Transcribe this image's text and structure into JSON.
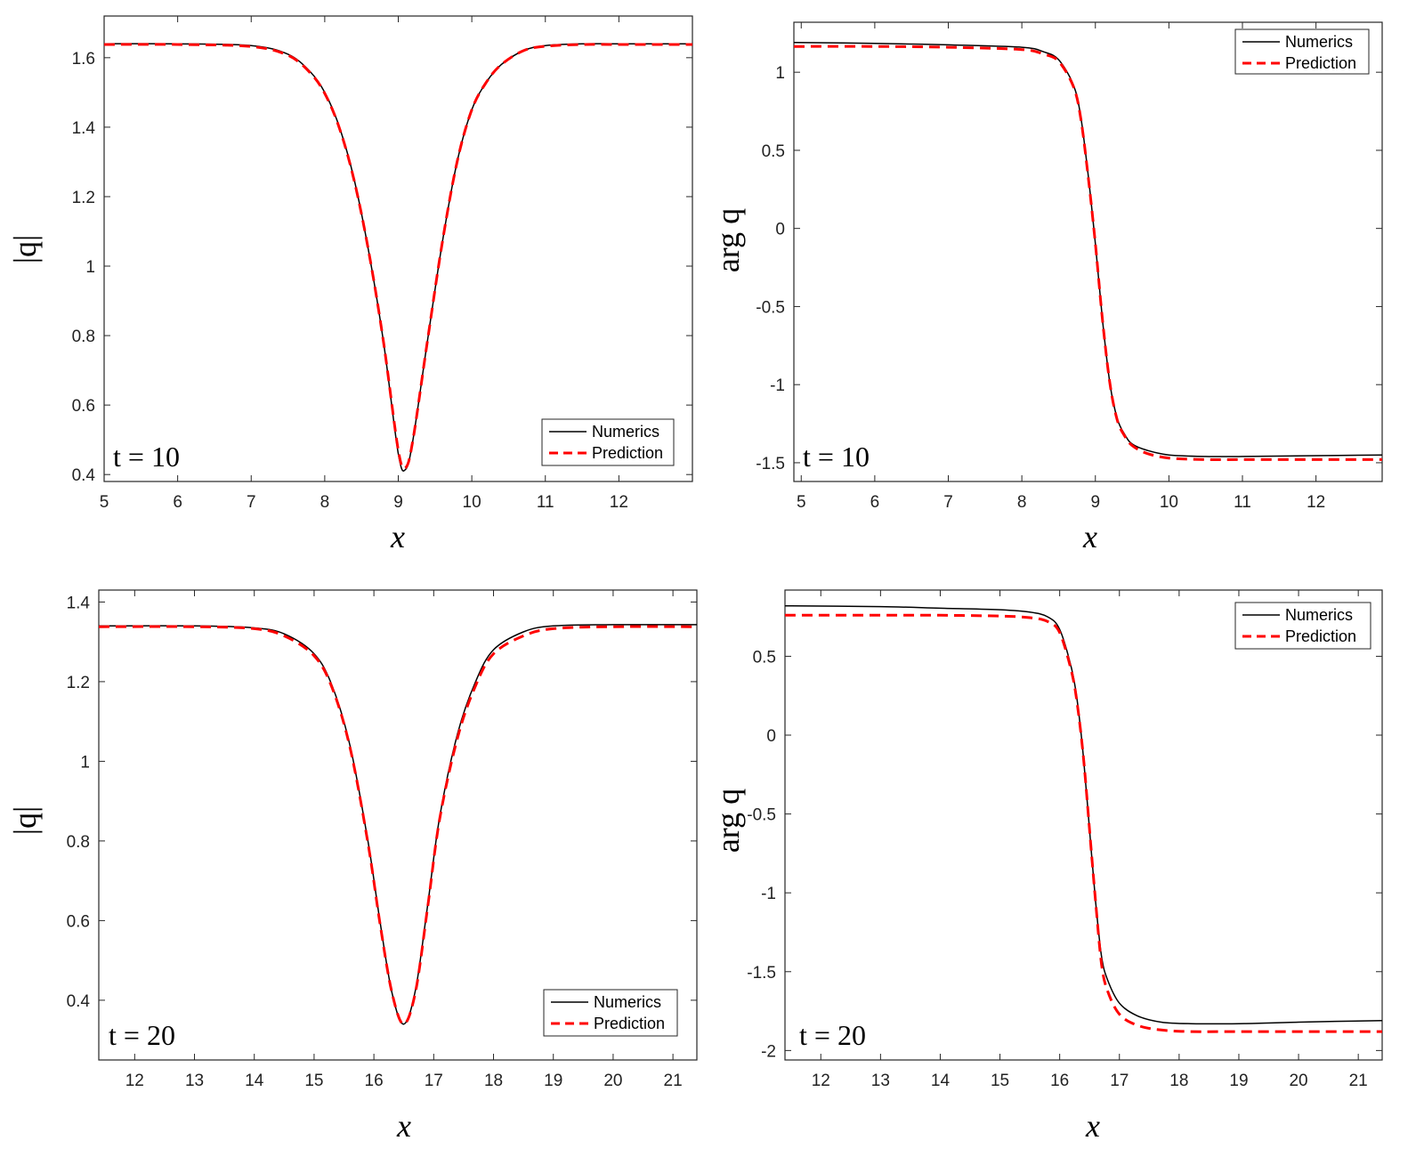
{
  "colors": {
    "numerics": "#000000",
    "prediction": "#ff0000",
    "axes": "#262626"
  },
  "chart_data": [
    {
      "type": "line",
      "xlabel": "x",
      "ylabel": "|q|",
      "annotation": "t = 10",
      "xlim": [
        5,
        13
      ],
      "ylim": [
        0.38,
        1.72
      ],
      "xticks": [
        "5",
        "6",
        "7",
        "8",
        "9",
        "10",
        "11",
        "12"
      ],
      "yticks": [
        "0.4",
        "0.6",
        "0.8",
        "1",
        "1.2",
        "1.4",
        "1.6"
      ],
      "legend_position": "bottom-right",
      "series": [
        {
          "name": "Numerics",
          "style": "solid",
          "x": [
            5,
            6,
            7,
            7.5,
            7.8,
            8,
            8.2,
            8.4,
            8.6,
            8.8,
            9,
            9.1,
            9.2,
            9.4,
            9.6,
            9.8,
            10,
            10.2,
            10.4,
            10.7,
            11,
            11.5,
            12,
            13
          ],
          "y": [
            1.64,
            1.64,
            1.635,
            1.61,
            1.56,
            1.5,
            1.4,
            1.25,
            1.04,
            0.78,
            0.46,
            0.415,
            0.5,
            0.79,
            1.07,
            1.3,
            1.45,
            1.53,
            1.58,
            1.62,
            1.635,
            1.64,
            1.64,
            1.64
          ]
        },
        {
          "name": "Prediction",
          "style": "dashed",
          "x": [
            5,
            6,
            7,
            7.5,
            7.8,
            8,
            8.2,
            8.4,
            8.6,
            8.8,
            9,
            9.1,
            9.2,
            9.4,
            9.6,
            9.8,
            10,
            10.2,
            10.4,
            10.7,
            11,
            11.5,
            12,
            13
          ],
          "y": [
            1.638,
            1.638,
            1.632,
            1.607,
            1.557,
            1.497,
            1.397,
            1.247,
            1.04,
            0.78,
            0.47,
            0.42,
            0.5,
            0.79,
            1.07,
            1.3,
            1.45,
            1.53,
            1.58,
            1.62,
            1.633,
            1.638,
            1.638,
            1.638
          ]
        }
      ]
    },
    {
      "type": "line",
      "xlabel": "x",
      "ylabel": "arg q",
      "annotation": "t = 10",
      "xlim": [
        4.9,
        12.9
      ],
      "ylim": [
        -1.62,
        1.32
      ],
      "xticks": [
        "5",
        "6",
        "7",
        "8",
        "9",
        "10",
        "11",
        "12"
      ],
      "yticks": [
        "-1.5",
        "-1",
        "-0.5",
        "0",
        "0.5",
        "1"
      ],
      "legend_position": "top-right",
      "series": [
        {
          "name": "Numerics",
          "style": "solid",
          "x": [
            4.9,
            6,
            7,
            8,
            8.3,
            8.5,
            8.7,
            8.8,
            8.9,
            9,
            9.1,
            9.2,
            9.3,
            9.4,
            9.5,
            9.7,
            10,
            10.5,
            11,
            12,
            12.9
          ],
          "y": [
            1.19,
            1.185,
            1.175,
            1.16,
            1.13,
            1.08,
            0.92,
            0.72,
            0.35,
            -0.1,
            -0.6,
            -1.0,
            -1.22,
            -1.32,
            -1.38,
            -1.42,
            -1.45,
            -1.46,
            -1.46,
            -1.455,
            -1.45
          ]
        },
        {
          "name": "Prediction",
          "style": "dashed",
          "x": [
            4.9,
            6,
            7,
            8,
            8.3,
            8.5,
            8.7,
            8.8,
            8.9,
            9,
            9.1,
            9.2,
            9.3,
            9.4,
            9.5,
            9.7,
            10,
            10.5,
            11,
            12,
            12.9
          ],
          "y": [
            1.165,
            1.165,
            1.16,
            1.145,
            1.115,
            1.07,
            0.91,
            0.71,
            0.34,
            -0.1,
            -0.6,
            -1.0,
            -1.23,
            -1.33,
            -1.39,
            -1.44,
            -1.47,
            -1.48,
            -1.48,
            -1.48,
            -1.48
          ]
        }
      ]
    },
    {
      "type": "line",
      "xlabel": "x",
      "ylabel": "|q|",
      "annotation": "t = 20",
      "xlim": [
        11.4,
        21.4
      ],
      "ylim": [
        0.25,
        1.43
      ],
      "xticks": [
        "12",
        "13",
        "14",
        "15",
        "16",
        "17",
        "18",
        "19",
        "20",
        "21"
      ],
      "yticks": [
        "0.4",
        "0.6",
        "0.8",
        "1",
        "1.2",
        "1.4"
      ],
      "legend_position": "bottom-right",
      "series": [
        {
          "name": "Numerics",
          "style": "solid",
          "x": [
            11.4,
            13,
            14,
            14.5,
            15,
            15.3,
            15.6,
            15.9,
            16.1,
            16.3,
            16.5,
            16.7,
            16.9,
            17.1,
            17.4,
            17.7,
            18,
            18.5,
            19,
            20,
            21.4
          ],
          "y": [
            1.34,
            1.34,
            1.335,
            1.32,
            1.27,
            1.19,
            1.04,
            0.8,
            0.6,
            0.42,
            0.34,
            0.43,
            0.64,
            0.86,
            1.07,
            1.2,
            1.28,
            1.325,
            1.34,
            1.343,
            1.343
          ]
        },
        {
          "name": "Prediction",
          "style": "dashed",
          "x": [
            11.4,
            13,
            14,
            14.5,
            15,
            15.3,
            15.6,
            15.9,
            16.1,
            16.3,
            16.5,
            16.7,
            16.9,
            17.1,
            17.4,
            17.7,
            18,
            18.5,
            19,
            20,
            21.4
          ],
          "y": [
            1.338,
            1.338,
            1.333,
            1.315,
            1.265,
            1.185,
            1.035,
            0.795,
            0.595,
            0.42,
            0.34,
            0.425,
            0.635,
            0.855,
            1.06,
            1.19,
            1.27,
            1.315,
            1.333,
            1.338,
            1.338
          ]
        }
      ]
    },
    {
      "type": "line",
      "xlabel": "x",
      "ylabel": "arg q",
      "annotation": "t = 20",
      "xlim": [
        11.4,
        21.4
      ],
      "ylim": [
        -2.06,
        0.92
      ],
      "xticks": [
        "12",
        "13",
        "14",
        "15",
        "16",
        "17",
        "18",
        "19",
        "20",
        "21"
      ],
      "yticks": [
        "-2",
        "-1.5",
        "-1",
        "-0.5",
        "0",
        "0.5"
      ],
      "legend_position": "top-right",
      "series": [
        {
          "name": "Numerics",
          "style": "solid",
          "x": [
            11.4,
            13,
            14,
            15,
            15.5,
            15.8,
            16,
            16.2,
            16.3,
            16.4,
            16.5,
            16.6,
            16.7,
            16.8,
            17,
            17.3,
            17.7,
            18.2,
            19,
            20,
            21.4
          ],
          "y": [
            0.82,
            0.815,
            0.805,
            0.795,
            0.78,
            0.75,
            0.67,
            0.42,
            0.2,
            -0.15,
            -0.6,
            -1.05,
            -1.4,
            -1.55,
            -1.7,
            -1.78,
            -1.82,
            -1.83,
            -1.83,
            -1.82,
            -1.81
          ]
        },
        {
          "name": "Prediction",
          "style": "dashed",
          "x": [
            11.4,
            13,
            14,
            15,
            15.5,
            15.8,
            16,
            16.2,
            16.3,
            16.4,
            16.5,
            16.6,
            16.7,
            16.8,
            17,
            17.3,
            17.7,
            18.2,
            19,
            20,
            21.4
          ],
          "y": [
            0.76,
            0.76,
            0.76,
            0.755,
            0.745,
            0.72,
            0.65,
            0.4,
            0.18,
            -0.15,
            -0.6,
            -1.05,
            -1.45,
            -1.62,
            -1.77,
            -1.84,
            -1.87,
            -1.88,
            -1.88,
            -1.88,
            -1.88
          ]
        }
      ]
    }
  ]
}
